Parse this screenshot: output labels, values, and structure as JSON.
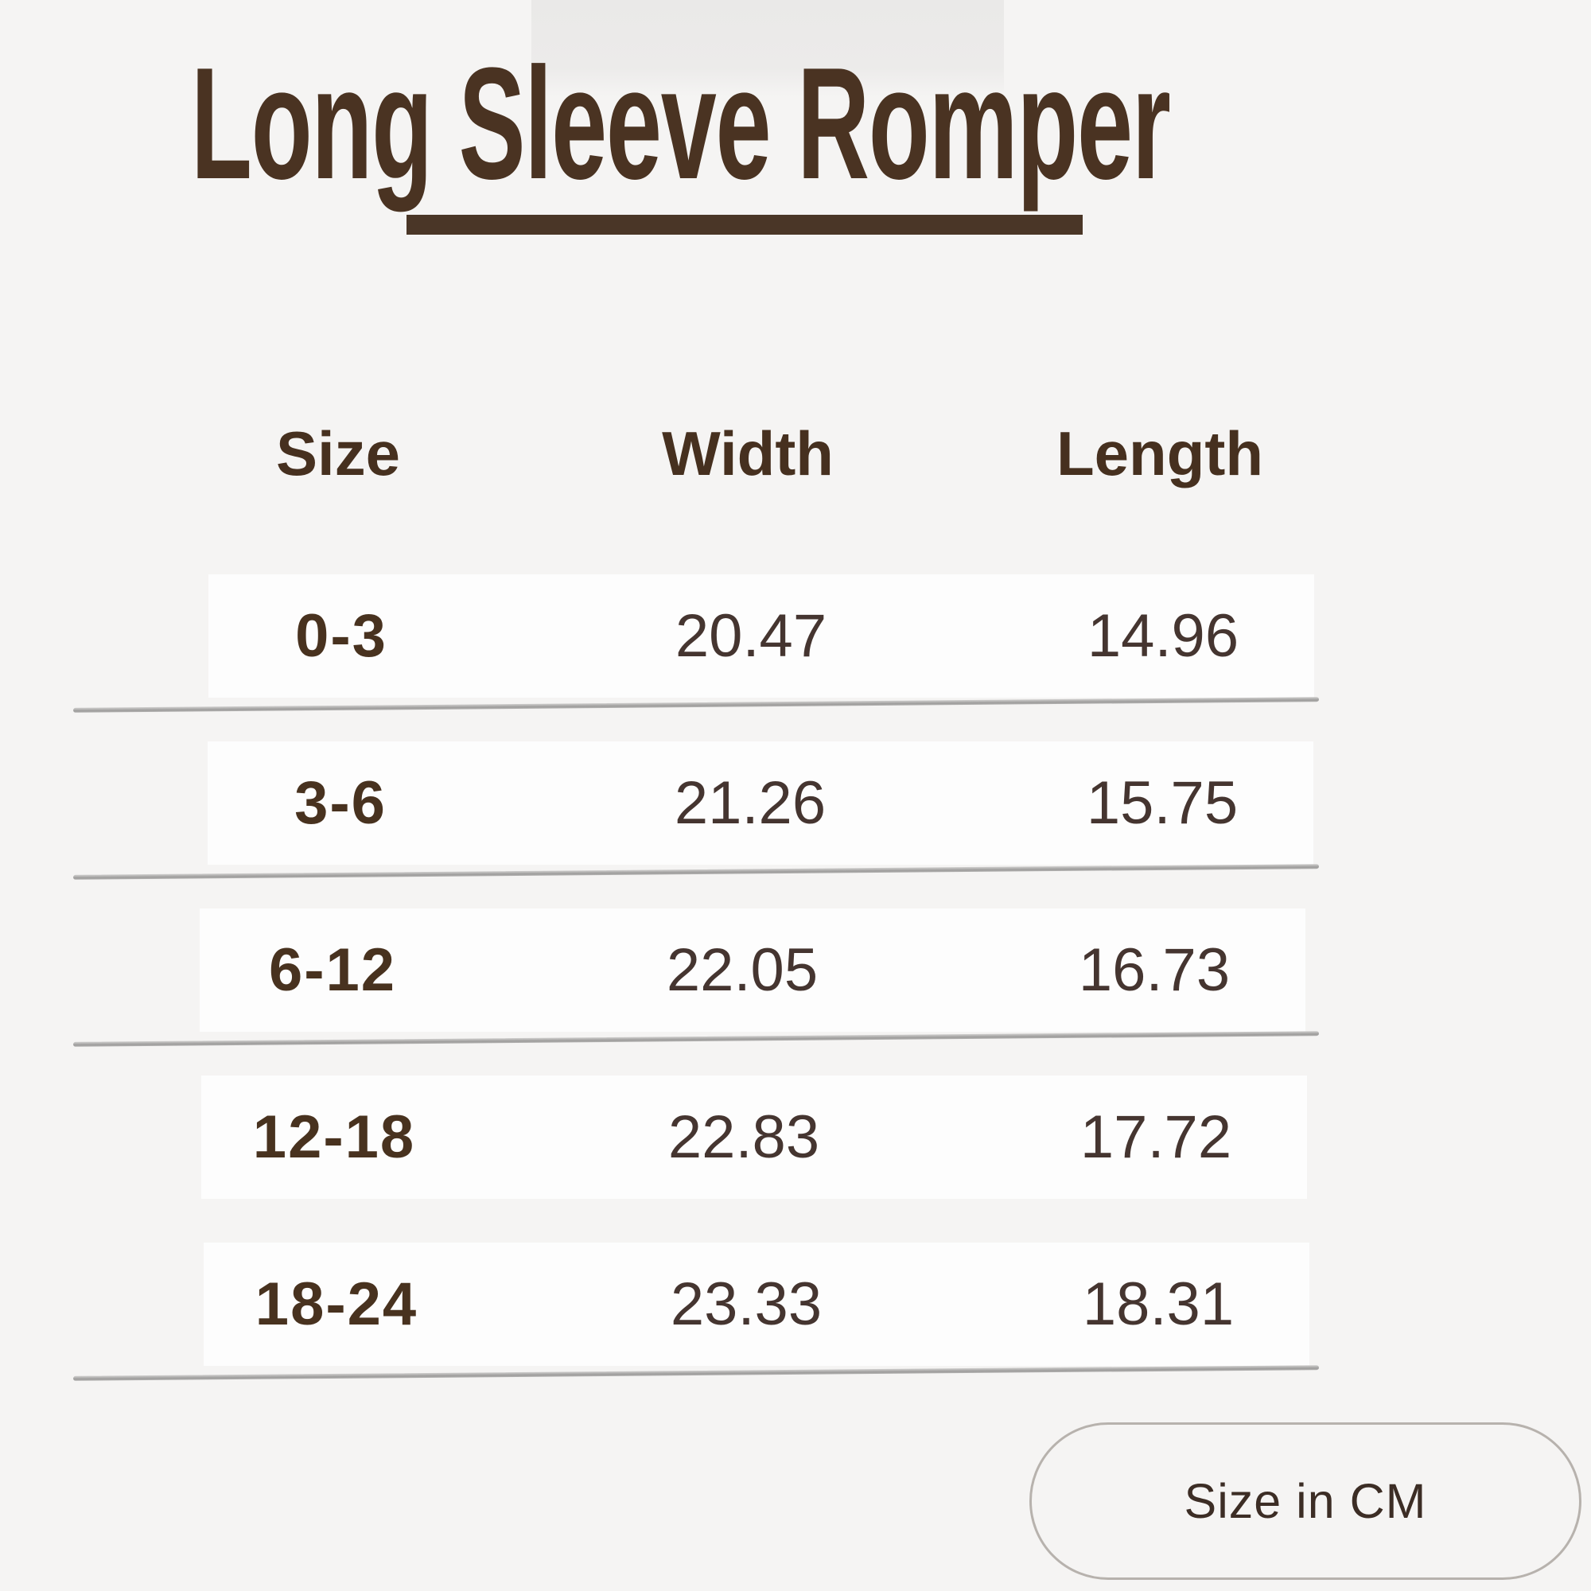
{
  "page": {
    "background_color": "#f5f4f3",
    "accent_brown": "#4a3322",
    "row_background": "#fdfdfd",
    "divider_gray": "#a8a7a6"
  },
  "header": {
    "title": "Long Sleeve Romper"
  },
  "table": {
    "columns": [
      "Size",
      "Width",
      "Length"
    ],
    "rows": [
      {
        "size": "0-3",
        "width": "20.47",
        "length": "14.96"
      },
      {
        "size": "3-6",
        "width": "21.26",
        "length": "15.75"
      },
      {
        "size": "6-12",
        "width": "22.05",
        "length": "16.73"
      },
      {
        "size": "12-18",
        "width": "22.83",
        "length": "17.72"
      },
      {
        "size": "18-24",
        "width": "23.33",
        "length": "18.31"
      }
    ]
  },
  "footer": {
    "unit_label": "Size in CM"
  }
}
